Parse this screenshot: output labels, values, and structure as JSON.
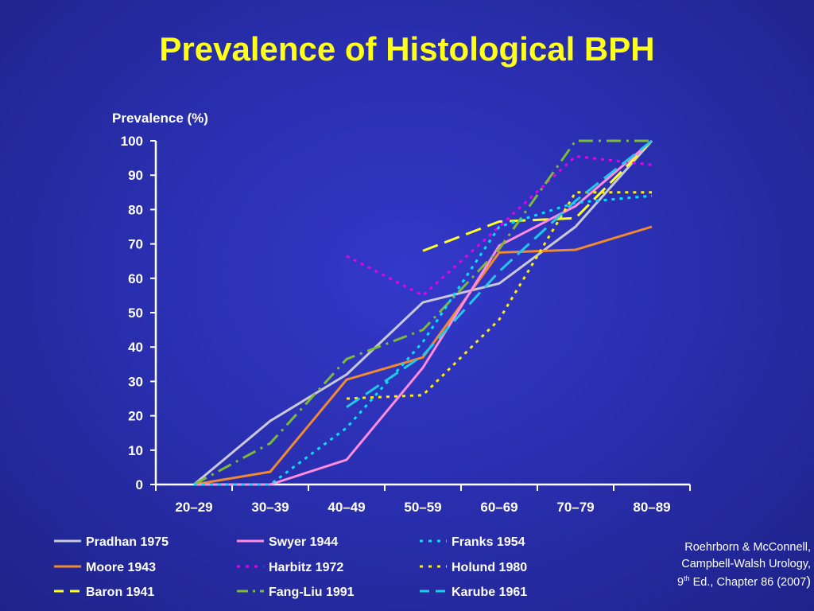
{
  "slide": {
    "title": "Prevalence of Histological BPH",
    "citation": {
      "line1": "Roehrborn & McConnell,",
      "line2": "Campbell-Walsh Urology,",
      "line3_num": "9",
      "line3_sup": "th",
      "line3_rest": " Ed., Chapter 86 (2007",
      "line3_end": ")"
    }
  },
  "colors": {
    "background": "#2a2fb0",
    "title": "#ffff1a",
    "axis": "#ffffff"
  },
  "chart_data": {
    "type": "line",
    "title": "Prevalence of Histological BPH",
    "ylabel": "Prevalence (%)",
    "xlabel": "",
    "ylim": [
      0,
      100
    ],
    "yticks": [
      0,
      10,
      20,
      30,
      40,
      50,
      60,
      70,
      80,
      90,
      100
    ],
    "categories": [
      "20–29",
      "30–39",
      "40–49",
      "50–59",
      "60–69",
      "70–79",
      "80–89"
    ],
    "grid": false,
    "legend_position": "bottom",
    "series": [
      {
        "name": "Pradhan 1975",
        "color": "#c8c8d8",
        "dash": "solid",
        "values": [
          0,
          18.5,
          32,
          53,
          58.5,
          75,
          100
        ]
      },
      {
        "name": "Moore 1943",
        "color": "#f08a30",
        "dash": "solid",
        "values": [
          0,
          3.7,
          30.5,
          37,
          67.5,
          68.3,
          75
        ]
      },
      {
        "name": "Baron 1941",
        "color": "#ffff22",
        "dash": "long",
        "values": [
          null,
          null,
          null,
          68,
          76.5,
          77.5,
          100
        ]
      },
      {
        "name": "Swyer 1944",
        "color": "#ff8ce0",
        "dash": "solid",
        "values": [
          0,
          0,
          7.2,
          34,
          69.5,
          81,
          100
        ]
      },
      {
        "name": "Harbitz 1972",
        "color": "#e800e8",
        "dash": "dot",
        "values": [
          null,
          null,
          66.5,
          55,
          75,
          95.5,
          93
        ]
      },
      {
        "name": "Fang-Liu 1991",
        "color": "#7cba3a",
        "dash": "dashdot",
        "values": [
          0,
          12,
          36.5,
          45,
          68.5,
          100,
          100
        ]
      },
      {
        "name": "Franks 1954",
        "color": "#00e4ff",
        "dash": "dot",
        "values": [
          0,
          0,
          16.5,
          41.5,
          75,
          82,
          84
        ]
      },
      {
        "name": "Holund 1980",
        "color": "#ffee00",
        "dash": "dot",
        "values": [
          null,
          null,
          25,
          26,
          48,
          85,
          85
        ]
      },
      {
        "name": "Karube 1961",
        "color": "#22c8e8",
        "dash": "long",
        "values": [
          null,
          null,
          22.5,
          37.5,
          62,
          82.5,
          100
        ]
      }
    ]
  }
}
